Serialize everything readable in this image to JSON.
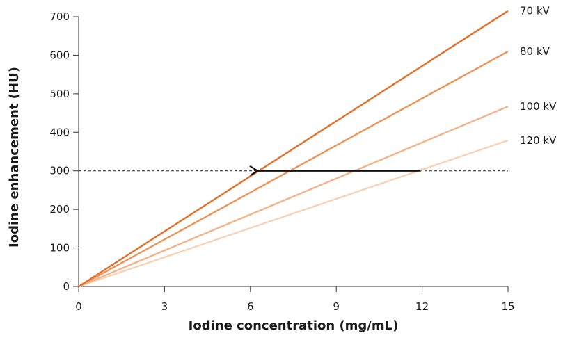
{
  "chart_data": {
    "type": "line",
    "xlabel": "Iodine concentration (mg/mL)",
    "ylabel": "Iodine enhancement (HU)",
    "xlim": [
      0,
      15
    ],
    "ylim": [
      0,
      700
    ],
    "x_ticks": [
      0,
      3,
      6,
      9,
      12,
      15
    ],
    "y_ticks": [
      0,
      100,
      200,
      300,
      400,
      500,
      600,
      700
    ],
    "grid": false,
    "legend": "labels at right end of each line",
    "series": [
      {
        "name": "70 kV",
        "color": "#e3702a",
        "x": [
          0,
          15
        ],
        "y": [
          0,
          715
        ]
      },
      {
        "name": "80 kV",
        "color": "#ec9356",
        "x": [
          0,
          15
        ],
        "y": [
          0,
          610
        ]
      },
      {
        "name": "100 kV",
        "color": "#f2b38a",
        "x": [
          0,
          15
        ],
        "y": [
          0,
          467
        ]
      },
      {
        "name": "120 kV",
        "color": "#f7d2b6",
        "x": [
          0,
          15
        ],
        "y": [
          0,
          379
        ]
      }
    ],
    "reference_line": {
      "y": 300,
      "style": "dashed",
      "color": "#222222"
    },
    "arrow": {
      "from": [
        11.95,
        300
      ],
      "to": [
        6.25,
        300
      ],
      "color": "#111111"
    }
  }
}
